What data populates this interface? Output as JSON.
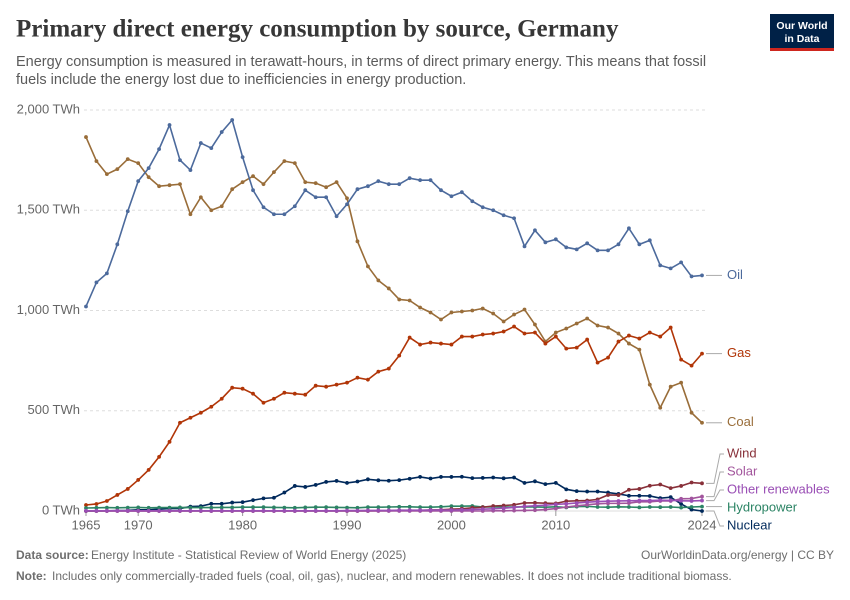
{
  "header": {
    "title": "Primary direct energy consumption by source, Germany",
    "subtitle": [
      "Energy consumption is measured in terawatt-hours, in terms of direct primary energy. This means that fossil",
      "fuels include the energy lost due to inefficiencies in energy production."
    ],
    "logo": [
      "Our World",
      "in Data"
    ]
  },
  "chart_data": {
    "type": "line",
    "x": [
      1965,
      1966,
      1967,
      1968,
      1969,
      1970,
      1971,
      1972,
      1973,
      1974,
      1975,
      1976,
      1977,
      1978,
      1979,
      1980,
      1981,
      1982,
      1983,
      1984,
      1985,
      1986,
      1987,
      1988,
      1989,
      1990,
      1991,
      1992,
      1993,
      1994,
      1995,
      1996,
      1997,
      1998,
      1999,
      2000,
      2001,
      2002,
      2003,
      2004,
      2005,
      2006,
      2007,
      2008,
      2009,
      2010,
      2011,
      2012,
      2013,
      2014,
      2015,
      2016,
      2017,
      2018,
      2019,
      2020,
      2021,
      2022,
      2023,
      2024
    ],
    "series": [
      {
        "name": "Coal",
        "color": "#996d39",
        "values": [
          1865,
          1745,
          1680,
          1705,
          1755,
          1735,
          1665,
          1620,
          1625,
          1630,
          1480,
          1565,
          1500,
          1520,
          1605,
          1640,
          1670,
          1630,
          1690,
          1745,
          1735,
          1640,
          1635,
          1615,
          1640,
          1560,
          1345,
          1220,
          1150,
          1110,
          1055,
          1050,
          1015,
          990,
          955,
          990,
          995,
          1000,
          1010,
          985,
          945,
          980,
          1005,
          930,
          845,
          890,
          910,
          935,
          960,
          925,
          915,
          885,
          835,
          805,
          630,
          515,
          620,
          640,
          490,
          440
        ]
      },
      {
        "name": "Oil",
        "color": "#4c6a9c",
        "values": [
          1020,
          1140,
          1185,
          1330,
          1495,
          1645,
          1710,
          1805,
          1925,
          1750,
          1700,
          1835,
          1810,
          1890,
          1950,
          1765,
          1600,
          1515,
          1480,
          1480,
          1520,
          1600,
          1565,
          1565,
          1470,
          1530,
          1605,
          1620,
          1645,
          1630,
          1630,
          1660,
          1650,
          1650,
          1600,
          1570,
          1590,
          1545,
          1515,
          1500,
          1475,
          1460,
          1320,
          1400,
          1340,
          1355,
          1315,
          1305,
          1335,
          1300,
          1300,
          1330,
          1410,
          1330,
          1350,
          1225,
          1210,
          1240,
          1170,
          1175
        ]
      },
      {
        "name": "Gas",
        "color": "#b13507",
        "values": [
          30,
          35,
          50,
          80,
          110,
          155,
          205,
          270,
          345,
          440,
          465,
          490,
          520,
          560,
          615,
          610,
          585,
          540,
          560,
          590,
          585,
          580,
          625,
          620,
          630,
          640,
          665,
          655,
          695,
          710,
          775,
          865,
          830,
          840,
          835,
          830,
          870,
          870,
          880,
          885,
          895,
          920,
          885,
          890,
          835,
          870,
          810,
          815,
          855,
          740,
          765,
          845,
          875,
          860,
          890,
          870,
          915,
          755,
          725,
          785
        ]
      },
      {
        "name": "Nuclear",
        "color": "#00295b",
        "values": [
          0,
          0,
          1,
          2,
          3,
          6,
          6,
          9,
          12,
          12,
          22,
          24,
          36,
          36,
          42,
          44,
          54,
          63,
          66,
          92,
          125,
          120,
          130,
          145,
          150,
          140,
          147,
          158,
          153,
          151,
          154,
          161,
          170,
          162,
          170,
          170,
          171,
          164,
          165,
          167,
          163,
          167,
          140,
          148,
          134,
          140,
          108,
          99,
          97,
          97,
          92,
          85,
          76,
          76,
          75,
          64,
          69,
          35,
          7,
          0
        ]
      },
      {
        "name": "Hydropower",
        "color": "#2c8465",
        "values": [
          15,
          16,
          17,
          16,
          17,
          18,
          16,
          17,
          17,
          18,
          17,
          17,
          17,
          18,
          18,
          19,
          19,
          19,
          18,
          17,
          16,
          18,
          19,
          19,
          18,
          17,
          16,
          19,
          19,
          20,
          21,
          21,
          19,
          19,
          21,
          24,
          24,
          25,
          20,
          21,
          20,
          20,
          21,
          20,
          19,
          21,
          18,
          22,
          23,
          20,
          19,
          21,
          20,
          18,
          20,
          19,
          20,
          17,
          20,
          22
        ]
      },
      {
        "name": "Wind",
        "color": "#883039",
        "values": [
          0,
          0,
          0,
          0,
          0,
          0,
          0,
          0,
          0,
          0,
          0,
          0,
          0,
          0,
          0,
          0,
          0,
          0,
          0,
          0,
          0,
          0,
          0,
          0,
          0,
          0,
          0,
          0,
          1,
          1,
          2,
          2,
          3,
          5,
          6,
          9,
          11,
          16,
          19,
          25,
          27,
          31,
          40,
          41,
          39,
          38,
          49,
          51,
          52,
          58,
          80,
          79,
          106,
          110,
          126,
          132,
          114,
          125,
          142,
          138
        ]
      },
      {
        "name": "Solar",
        "color": "#a2559c",
        "values": [
          0,
          0,
          0,
          0,
          0,
          0,
          0,
          0,
          0,
          0,
          0,
          0,
          0,
          0,
          0,
          0,
          0,
          0,
          0,
          0,
          0,
          0,
          0,
          0,
          0,
          0,
          0,
          0,
          0,
          0,
          0,
          0,
          0,
          0,
          0,
          0,
          0,
          0,
          0,
          1,
          1,
          2,
          3,
          4,
          7,
          12,
          20,
          26,
          31,
          36,
          38,
          38,
          39,
          46,
          46,
          50,
          50,
          61,
          62,
          72
        ]
      },
      {
        "name": "Other renewables",
        "color": "#9a4fb5",
        "values": [
          1,
          1,
          1,
          1,
          1,
          1,
          1,
          1,
          1,
          1,
          1,
          1,
          1,
          1,
          1,
          1,
          1,
          1,
          1,
          1,
          1,
          1,
          1,
          1,
          1,
          2,
          2,
          3,
          3,
          3,
          4,
          4,
          4,
          5,
          5,
          5,
          6,
          7,
          9,
          11,
          14,
          18,
          23,
          26,
          29,
          33,
          36,
          40,
          44,
          47,
          49,
          50,
          51,
          52,
          52,
          54,
          53,
          51,
          50,
          52
        ]
      }
    ],
    "xlim": [
      1965,
      2024
    ],
    "xticks": [
      1965,
      1970,
      1980,
      1990,
      2000,
      2010,
      2024
    ],
    "ylim": [
      0,
      2000
    ],
    "yticks": [
      {
        "value": 0,
        "label": "0 TWh"
      },
      {
        "value": 500,
        "label": "500 TWh"
      },
      {
        "value": 1000,
        "label": "1,000 TWh"
      },
      {
        "value": 1500,
        "label": "1,500 TWh"
      },
      {
        "value": 2000,
        "label": "2,000 TWh"
      }
    ],
    "grid": true
  },
  "footer": {
    "source_label": "Data source:",
    "source": "Energy Institute - Statistical Review of World Energy (2025)",
    "credit": "OurWorldinData.org/energy | CC BY",
    "note_label": "Note:",
    "note": "Includes only commercially-traded fuels (coal, oil, gas), nuclear, and modern renewables. It does not include traditional biomass."
  }
}
